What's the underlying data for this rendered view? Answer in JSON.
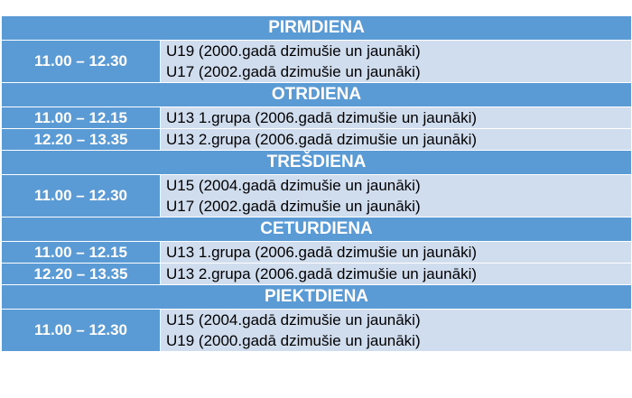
{
  "schedule": [
    {
      "day": "PIRMDIENA",
      "slots": [
        {
          "time": "11.00 – 12.30",
          "groups": [
            "U19 (2000.gadā dzimušie un jaunāki)",
            "U17 (2002.gadā dzimušie un jaunāki)"
          ]
        }
      ]
    },
    {
      "day": "OTRDIENA",
      "slots": [
        {
          "time": "11.00 – 12.15",
          "groups": [
            "U13 1.grupa (2006.gadā dzimušie un jaunāki)"
          ]
        },
        {
          "time": "12.20 – 13.35",
          "groups": [
            "U13 2.grupa (2006.gadā dzimušie un jaunāki)"
          ]
        }
      ]
    },
    {
      "day": "TREŠDIENA",
      "slots": [
        {
          "time": "11.00 – 12.30",
          "groups": [
            "U15 (2004.gadā dzimušie un jaunāki)",
            "U17 (2002.gadā dzimušie un jaunāki)"
          ]
        }
      ]
    },
    {
      "day": "CETURDIENA",
      "slots": [
        {
          "time": "11.00 – 12.15",
          "groups": [
            "U13 1.grupa (2006.gadā dzimušie un jaunāki)"
          ]
        },
        {
          "time": "12.20 – 13.35",
          "groups": [
            "U13 2.grupa (2006.gadā dzimušie un jaunāki)"
          ]
        }
      ]
    },
    {
      "day": "PIEKTDIENA",
      "slots": [
        {
          "time": "11.00 – 12.30",
          "groups": [
            "U15 (2004.gadā dzimušie un jaunāki)",
            "U19 (2000.gadā dzimušie un jaunāki)"
          ]
        }
      ]
    }
  ],
  "colors": {
    "header_blue": "#5b9bd5",
    "row_light": "#d0ddef",
    "header_text": "#ffffff",
    "body_text": "#000000"
  }
}
